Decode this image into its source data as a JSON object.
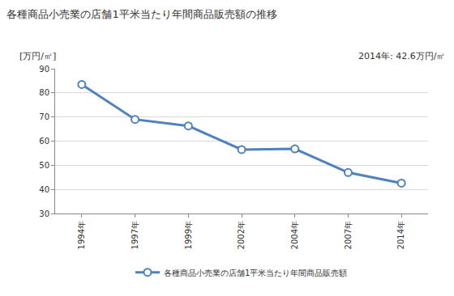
{
  "chart_data": {
    "type": "line",
    "title": "各種商品小売業の店舗1平米当たり年間商品販売額の推移",
    "ylabel": "[万円/㎡]",
    "annotations": [
      "2014年: 42.6万円/㎡"
    ],
    "categories": [
      "1994年",
      "1997年",
      "1999年",
      "2002年",
      "2004年",
      "2007年",
      "2014年"
    ],
    "series": [
      {
        "name": "各種商品小売業の店舗1平米当たり年間商品販売額",
        "color": "#4f81bd",
        "values": [
          83.5,
          69.0,
          66.3,
          56.5,
          56.8,
          47.0,
          42.6
        ]
      }
    ],
    "ylim": [
      30,
      90
    ],
    "yticks": [
      30,
      40,
      50,
      60,
      70,
      80,
      90
    ],
    "grid": true,
    "legend": "bottom",
    "marker": "circle-open"
  }
}
